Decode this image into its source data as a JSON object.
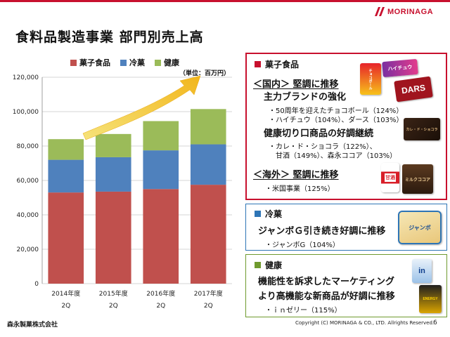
{
  "header": {
    "title": "食料品製造事業 部門別売上高",
    "brand": "MORINAGA"
  },
  "chart_data": {
    "type": "bar",
    "stacked": true,
    "categories": [
      [
        "2014年度",
        "2Q"
      ],
      [
        "2015年度",
        "2Q"
      ],
      [
        "2016年度",
        "2Q"
      ],
      [
        "2017年度",
        "2Q"
      ]
    ],
    "series": [
      {
        "name": "菓子食品",
        "color": "#c0504d",
        "values": [
          53000,
          53500,
          55000,
          57500
        ]
      },
      {
        "name": "冷菓",
        "color": "#4f81bd",
        "values": [
          19000,
          20000,
          22500,
          23500
        ]
      },
      {
        "name": "健康",
        "color": "#9bbb59",
        "values": [
          12000,
          13500,
          17000,
          20500
        ]
      }
    ],
    "ylim": [
      0,
      120000
    ],
    "yticks": [
      "0",
      "20,000",
      "40,000",
      "60,000",
      "80,000",
      "100,000",
      "120,000"
    ],
    "unit": "（単位：百万円）",
    "grid": true,
    "legend_position": "top"
  },
  "panels": {
    "confectionery": {
      "heading": "菓子食品",
      "color": "#c8102e",
      "domestic": "＜国内＞ 堅調に推移",
      "line1": "主力ブランドの強化",
      "item1a": "・50周年を迎えたチョコボール（124%）",
      "item1b": "・ハイチュウ（104%）、ダース（103%）",
      "line2": "健康切り口商品の好調継続",
      "item2a": "・カレ・ド・ショコラ（122%）、",
      "item2b": "甘酒（149%）、森永ココア（103%）",
      "overseas": "＜海外＞ 堅調に推移",
      "item3": "・米国事業（125%）"
    },
    "frozen": {
      "heading": "冷菓",
      "color": "#2e75b6",
      "line1": "ジャンボＧ引き続き好調に推移",
      "item1": "・ジャンボG（104%）"
    },
    "health": {
      "heading": "健康",
      "color": "#6f9a2e",
      "line1": "機能性を訴求したマーケティング",
      "line2": "より高機能な新商品が好調に推移",
      "item1": "・ｉｎゼリー（115%）"
    }
  },
  "products": {
    "chocoball": "チョコボール",
    "hi_chew": "ハイチュウ",
    "dars": "DARS",
    "carre": "カレ・ド・ショコラ",
    "amazake": "甘酒",
    "cocoa": "ミルクココア",
    "jumbo": "ジャンボ",
    "in_jelly": "in",
    "in_jelly_sub": "ENERGY"
  },
  "footer": {
    "company": "森永製菓株式会社",
    "copyright": "Copyright (C) MORINAGA & CO., LTD. Allrights Reserved.",
    "page": "6"
  }
}
